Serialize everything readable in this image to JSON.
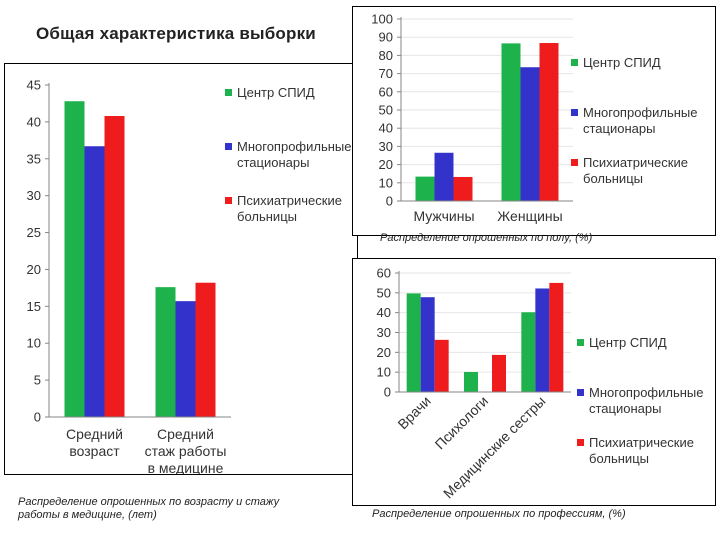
{
  "page_title": "Общая характеристика выборки",
  "colors": {
    "Центр СПИД": "#1db24b",
    "Многопрофильные стационары": "#3333cc",
    "Психиатрические больницы": "#ee1c1c",
    "axis": "#868686",
    "grid": "#e6e6e6"
  },
  "chart_data": [
    {
      "id": "age",
      "type": "bar",
      "title": "",
      "xlabel": "",
      "ylabel": "",
      "ylim": [
        0,
        45
      ],
      "yticks": [
        0,
        5,
        10,
        15,
        20,
        25,
        30,
        35,
        40,
        45
      ],
      "grid": false,
      "legend_position": "right",
      "categories": [
        "Средний возраст",
        "Средний стаж работы в медицине"
      ],
      "category_lines": [
        [
          "Средний",
          "возраст"
        ],
        [
          "Средний",
          "стаж работы",
          "в медицине"
        ]
      ],
      "series": [
        {
          "name": "Центр СПИД",
          "legend_lines": [
            "Центр СПИД"
          ],
          "values": [
            42.8,
            17.6
          ]
        },
        {
          "name": "Многопрофильные стационары",
          "legend_lines": [
            "Многопрофильные",
            "стационары"
          ],
          "values": [
            36.7,
            15.7
          ]
        },
        {
          "name": "Психиатрические больницы",
          "legend_lines": [
            "Психиатрические",
            "больницы"
          ],
          "values": [
            40.8,
            18.2
          ]
        }
      ],
      "caption": "Распределение опрошенных по возрасту и стажу работы в медицине, (лет)",
      "caption_lines": [
        "Распределение опрошенных по возрасту и стажу",
        "работы в медицине, (лет)"
      ]
    },
    {
      "id": "gender",
      "type": "bar",
      "title": "",
      "xlabel": "",
      "ylabel": "",
      "ylim": [
        0,
        100
      ],
      "yticks": [
        0,
        10,
        20,
        30,
        40,
        50,
        60,
        70,
        80,
        90,
        100
      ],
      "grid": true,
      "legend_position": "right",
      "categories": [
        "Мужчины",
        "Женщины"
      ],
      "category_lines": [
        [
          "Мужчины"
        ],
        [
          "Женщины"
        ]
      ],
      "series": [
        {
          "name": "Центр СПИД",
          "legend_lines": [
            "Центр СПИД"
          ],
          "values": [
            13.4,
            86.6
          ]
        },
        {
          "name": "Многопрофильные стационары",
          "legend_lines": [
            "Многопрофильные",
            "стационары"
          ],
          "values": [
            26.5,
            73.5
          ]
        },
        {
          "name": "Психиатрические больницы",
          "legend_lines": [
            "Психиатрические",
            "больницы"
          ],
          "values": [
            13.2,
            86.8
          ]
        }
      ],
      "caption": "Распределение опрошенных по полу, (%)",
      "caption_lines": [
        "Распределение опрошенных по полу, (%)"
      ]
    },
    {
      "id": "profession",
      "type": "bar",
      "title": "",
      "xlabel": "",
      "ylabel": "",
      "ylim": [
        0,
        60
      ],
      "yticks": [
        0,
        10,
        20,
        30,
        40,
        50,
        60
      ],
      "grid": true,
      "legend_position": "right",
      "categories": [
        "Врачи",
        "Психологи",
        "Медицинские сестры"
      ],
      "category_lines": [
        [
          "Врачи"
        ],
        [
          "Психологи"
        ],
        [
          "Медицинские сестры"
        ]
      ],
      "series": [
        {
          "name": "Центр СПИД",
          "legend_lines": [
            "Центр СПИД"
          ],
          "values": [
            49.7,
            10.1,
            40.2
          ]
        },
        {
          "name": "Многопрофильные стационары",
          "legend_lines": [
            "Многопрофильные",
            "стационары"
          ],
          "values": [
            47.8,
            0,
            52.2
          ]
        },
        {
          "name": "Психиатрические больницы",
          "legend_lines": [
            "Психиатрические",
            "больницы"
          ],
          "values": [
            26.3,
            18.7,
            55.0
          ]
        }
      ],
      "caption": "Распределение опрошенных по профессиям, (%)",
      "caption_lines": [
        "Распределение опрошенных по профессиям, (%)"
      ]
    }
  ]
}
